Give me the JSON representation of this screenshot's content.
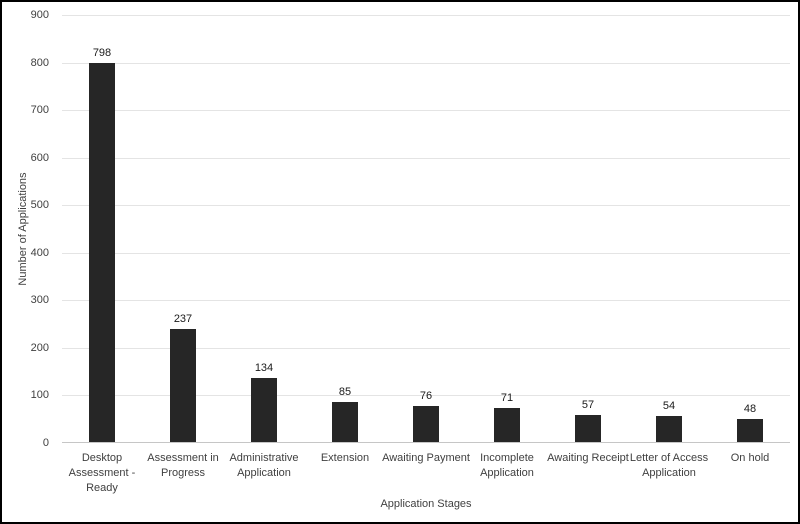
{
  "figure": {
    "background": "#ffffff",
    "border_color": "#000000"
  },
  "chart_data": {
    "type": "bar",
    "title": "",
    "categories": [
      "Desktop Assessment - Ready",
      "Assessment in Progress",
      "Administrative Application",
      "Extension",
      "Awaiting Payment",
      "Incomplete Application",
      "Awaiting Receipt",
      "Letter of Access Application",
      "On hold"
    ],
    "values": [
      798,
      237,
      134,
      85,
      76,
      71,
      57,
      54,
      48
    ],
    "value_labels": [
      "798",
      "237",
      "134",
      "85",
      "76",
      "71",
      "57",
      "54",
      "48"
    ],
    "xlabel": "Application Stages",
    "ylabel": "Number of Applications",
    "ylim": [
      0,
      900
    ],
    "ytick_step": 100,
    "ytick_labels": [
      "0",
      "100",
      "200",
      "300",
      "400",
      "500",
      "600",
      "700",
      "800",
      "900"
    ],
    "grid": "horizontal",
    "legend_position": "none",
    "bar_color": "#262626",
    "gridline_color": "#e4e4e4",
    "axisline_color": "#c6c6c6",
    "tick_text_color": "#3f3f3f",
    "value_label_color": "#1a1a1a"
  }
}
